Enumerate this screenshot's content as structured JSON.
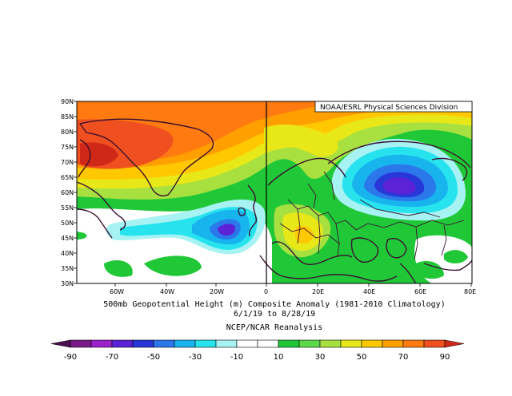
{
  "map": {
    "attribution": "NOAA/ESRL Physical Sciences Division",
    "lat_labels": [
      "90N",
      "85N",
      "80N",
      "75N",
      "70N",
      "65N",
      "60N",
      "55N",
      "50N",
      "45N",
      "40N",
      "35N",
      "30N"
    ],
    "lon_labels": [
      "60W",
      "40W",
      "20W",
      "0",
      "20E",
      "40E",
      "60E",
      "80E"
    ],
    "caption_line1": "500mb Geopotential Height (m) Composite Anomaly (1981-2010 Climatology)",
    "caption_line2": "6/1/19  to 8/28/19",
    "caption_line3": "NCEP/NCAR Reanalysis"
  },
  "colorbar": {
    "labels": [
      "-90",
      "-70",
      "-50",
      "-30",
      "-10",
      "10",
      "30",
      "50",
      "70",
      "90"
    ],
    "colors": [
      "#4a0f4f",
      "#7a1a8a",
      "#9a22c8",
      "#5b22d6",
      "#2838d8",
      "#2a78ea",
      "#18b4ee",
      "#27e3ee",
      "#a7f3f3",
      "#ffffff",
      "#ffffff",
      "#20c838",
      "#5cd848",
      "#a8e040",
      "#e8e818",
      "#ffc800",
      "#ffa000",
      "#ff7a10",
      "#f05020",
      "#d02818"
    ]
  }
}
